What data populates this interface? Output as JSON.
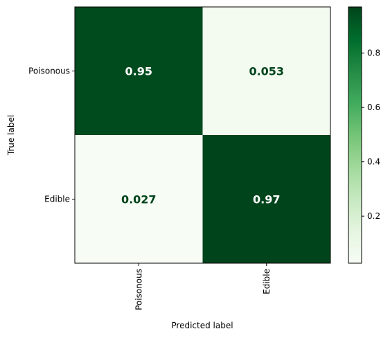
{
  "chart_data": {
    "type": "heatmap",
    "title": "",
    "xlabel": "Predicted label",
    "ylabel": "True label",
    "x_categories": [
      "Poisonous",
      "Edible"
    ],
    "y_categories": [
      "Poisonous",
      "Edible"
    ],
    "values": [
      [
        0.95,
        0.053
      ],
      [
        0.027,
        0.97
      ]
    ],
    "cell_labels": [
      [
        "0.95",
        "0.053"
      ],
      [
        "0.027",
        "0.97"
      ]
    ],
    "colormap": "Greens",
    "colorbar": {
      "vmin": 0.027,
      "vmax": 0.97,
      "ticks": [
        0.2,
        0.4,
        0.6,
        0.8
      ],
      "tick_labels": [
        "0.2",
        "0.4",
        "0.6",
        "0.8"
      ]
    },
    "colors": {
      "low": "#f7fcf5",
      "high": "#00441b",
      "label_on_dark": "#ffffff",
      "label_on_light": "#00441b"
    }
  }
}
